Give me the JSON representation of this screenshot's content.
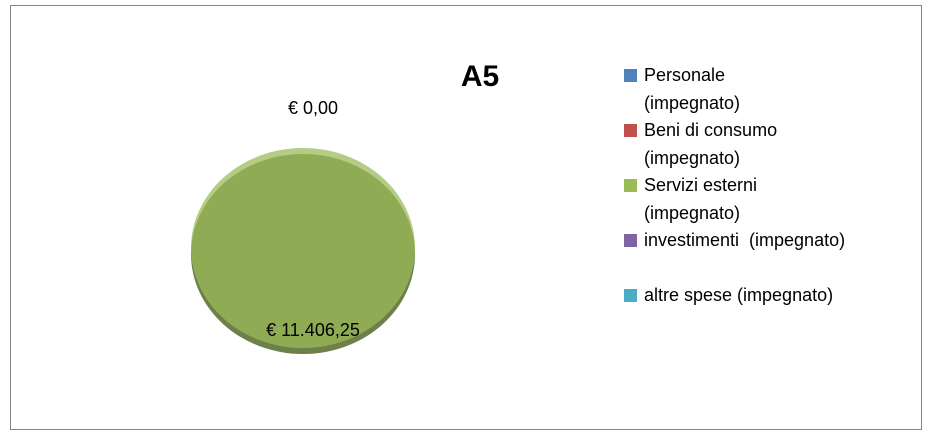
{
  "chart_data": {
    "type": "pie",
    "title": "A5",
    "categories": [
      "Personale (impegnato)",
      "Beni di consumo (impegnato)",
      "Servizi esterni (impegnato)",
      "investimenti  (impegnato)",
      "altre spese (impegnato)"
    ],
    "values": [
      0,
      0,
      11406.25,
      0,
      0
    ],
    "value_labels": [
      "€ 0,00",
      null,
      "€ 11.406,25",
      null,
      null
    ],
    "colors": [
      "#4f81bd",
      "#c0504d",
      "#9bbb59",
      "#8064a2",
      "#4bacc6"
    ]
  }
}
